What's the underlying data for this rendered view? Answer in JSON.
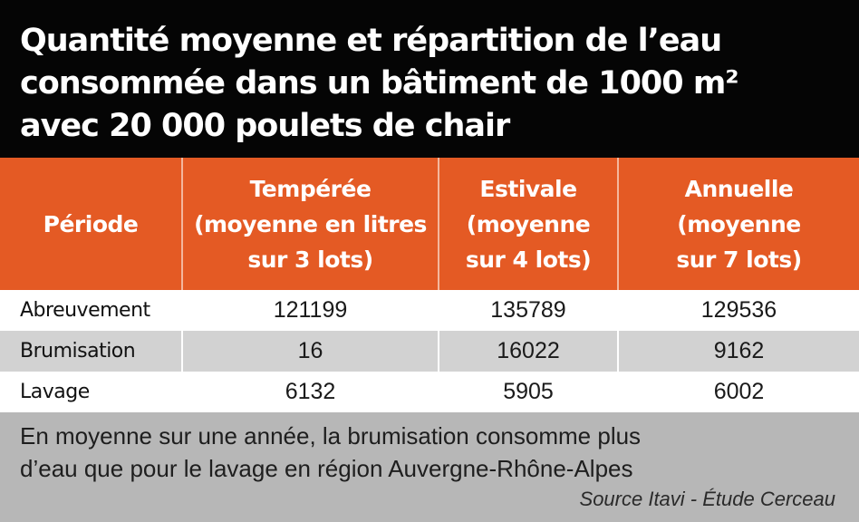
{
  "title": {
    "lines": [
      "Quantité moyenne et répartition de l’eau",
      "consommée dans un bâtiment de 1000 m²",
      "avec 20 000 poulets de chair"
    ]
  },
  "table": {
    "headers": [
      {
        "lines": [
          "Période"
        ]
      },
      {
        "lines": [
          "Tempérée",
          "(moyenne en litres",
          "sur 3 lots)"
        ]
      },
      {
        "lines": [
          "Estivale",
          "(moyenne",
          "sur 4 lots)"
        ]
      },
      {
        "lines": [
          "Annuelle",
          "(moyenne",
          "sur 7 lots)"
        ]
      }
    ],
    "rows": [
      {
        "label": "Abreuvement",
        "values": [
          "121199",
          "135789",
          "129536"
        ]
      },
      {
        "label": "Brumisation",
        "values": [
          "16",
          "16022",
          "9162"
        ]
      },
      {
        "label": "Lavage",
        "values": [
          "6132",
          "5905",
          "6002"
        ]
      }
    ]
  },
  "note": {
    "lines": [
      "En moyenne sur une année, la brumisation consomme plus",
      "d’eau que pour le lavage en région Auvergne-Rhône-Alpes"
    ],
    "source": "Source Itavi - Étude Cerceau"
  },
  "colors": {
    "title_background": "#050505",
    "header_background": "#e45a24",
    "shaded_row": "#d2d2d2",
    "footer_background": "#b7b7b7"
  }
}
